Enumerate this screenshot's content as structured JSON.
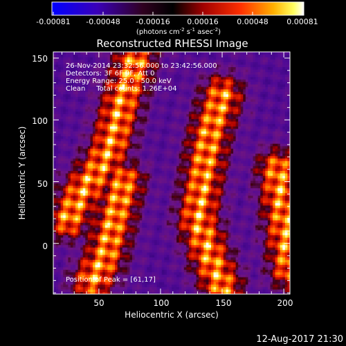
{
  "colorbar": {
    "ticks": [
      "-0.00081",
      "-0.00048",
      "-0.00016",
      "0.00016",
      "0.00048",
      "0.00081"
    ],
    "units_main": "(photons cm",
    "units_sup1": "-2",
    "units_mid": " s",
    "units_sup2": "-1",
    "units_end": " asec",
    "units_sup3": "-2",
    "units_close": ")"
  },
  "header": {
    "title": "Reconstructed RHESSI Image",
    "line1": "26-Nov-2014 23:32:56.000 to 23:42:56.000",
    "line2": "Detectors: 3F 6F 9F, Att 0",
    "line3": "Energy Range: 25.0 - 50.0 keV",
    "line4": "Clean     Total counts: 1.26E+04",
    "peak": "Position of Peak = [61,17]"
  },
  "footer": {
    "timestamp": "12-Aug-2017 21:30"
  },
  "chart_data": {
    "type": "heatmap",
    "title": "Reconstructed RHESSI Image",
    "xlabel": "Heliocentric X (arcsec)",
    "ylabel": "Heliocentric Y (arcsec)",
    "xlim": [
      13,
      205
    ],
    "ylim": [
      -41,
      155
    ],
    "xticks": [
      50,
      100,
      150,
      200
    ],
    "yticks": [
      0,
      50,
      100,
      150
    ],
    "colorscale": [
      "#0000ff",
      "#3a00c0",
      "#4b0aa0",
      "#800000",
      "#ff0000",
      "#ff9000",
      "#ffff00",
      "#ffffff"
    ],
    "colorbar_range": [
      -0.00081,
      0.00081
    ],
    "peak_position": [
      61,
      17
    ],
    "bright_ridges": [
      {
        "x": [
          25,
          35,
          50,
          60,
          65,
          70,
          80
        ],
        "y": [
          20,
          40,
          60,
          80,
          100,
          120,
          150
        ]
      },
      {
        "x": [
          45,
          55,
          60,
          65,
          70
        ],
        "y": [
          -30,
          -10,
          10,
          30,
          50
        ]
      },
      {
        "x": [
          150,
          140,
          135,
          130,
          140,
          150
        ],
        "y": [
          120,
          90,
          60,
          20,
          -10,
          -35
        ]
      },
      {
        "x": [
          195,
          200,
          205
        ],
        "y": [
          60,
          20,
          -20
        ]
      }
    ]
  }
}
